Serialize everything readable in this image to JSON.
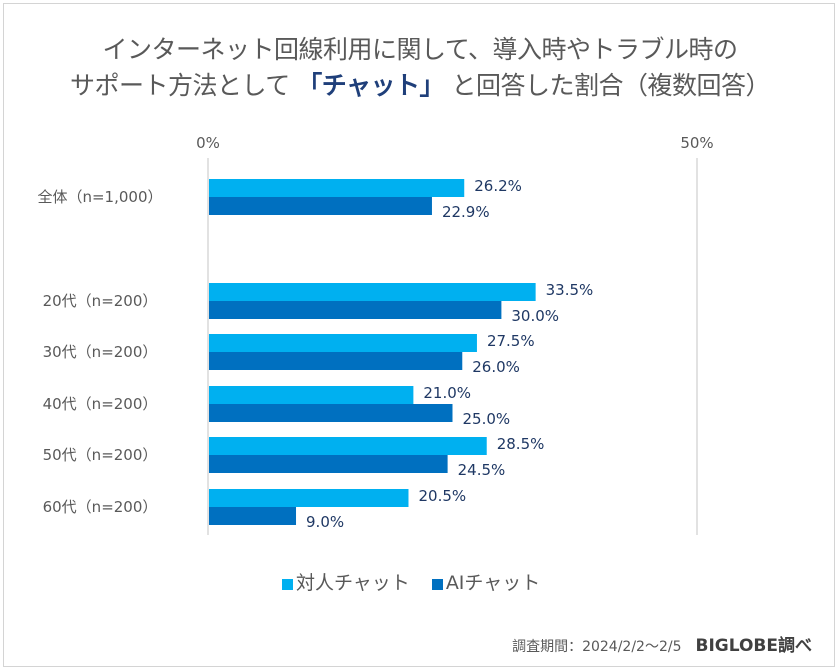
{
  "title": {
    "line1": "インターネット回線利用に関して、導入時やトラブル時の",
    "line2_pre": "サポート方法として",
    "line2_em": "「チャット」",
    "line2_post": "と回答した割合（複数回答）"
  },
  "colors": {
    "series1": "#00b0f0",
    "series2": "#0070c0",
    "label": "#1f3864",
    "gridline": "#d9d9d9"
  },
  "chart_data": {
    "type": "bar",
    "orientation": "horizontal",
    "title": "インターネット回線利用に関して、導入時やトラブル時のサポート方法として「チャット」と回答した割合（複数回答）",
    "categories": [
      "全体（n=1,000）",
      "20代（n=200）",
      "30代（n=200）",
      "40代（n=200）",
      "50代（n=200）",
      "60代（n=200）"
    ],
    "series": [
      {
        "name": "対人チャット",
        "values": [
          26.2,
          33.5,
          27.5,
          21.0,
          28.5,
          20.5
        ]
      },
      {
        "name": "AIチャット",
        "values": [
          22.9,
          30.0,
          26.0,
          25.0,
          24.5,
          9.0
        ]
      }
    ],
    "value_labels": [
      [
        "26.2%",
        "33.5%",
        "27.5%",
        "21.0%",
        "28.5%",
        "20.5%"
      ],
      [
        "22.9%",
        "30.0%",
        "26.0%",
        "25.0%",
        "24.5%",
        "9.0%"
      ]
    ],
    "xlim": [
      0,
      50
    ],
    "xticks": [
      "0%",
      "50%"
    ],
    "xlabel": "",
    "ylabel": "",
    "grid": true,
    "legend": "bottom"
  },
  "legend": {
    "items": [
      {
        "label": "対人チャット"
      },
      {
        "label": "AIチャット"
      }
    ]
  },
  "footer": {
    "period": "調査期間：2024/2/2～2/5",
    "source": "BIGLOBE調べ"
  }
}
